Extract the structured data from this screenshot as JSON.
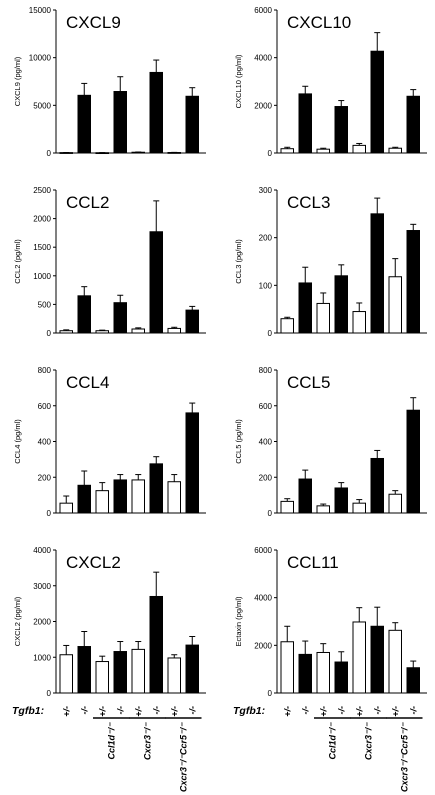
{
  "chart_data": [
    {
      "type": "bar",
      "title": "CXCL9",
      "ylabel": "CXCL9 (pg/ml)",
      "ylim": [
        0,
        15000
      ],
      "yticks": [
        0,
        5000,
        10000,
        15000
      ],
      "values": [
        40,
        6050,
        30,
        6450,
        80,
        8450,
        50,
        5950
      ],
      "errors": [
        10,
        1250,
        10,
        1550,
        25,
        1300,
        15,
        900
      ]
    },
    {
      "type": "bar",
      "title": "CXCL10",
      "ylabel": "CXCL10 (pg/ml)",
      "ylim": [
        0,
        6000
      ],
      "yticks": [
        0,
        2000,
        4000,
        6000
      ],
      "values": [
        180,
        2480,
        160,
        1950,
        320,
        4270,
        200,
        2380
      ],
      "errors": [
        60,
        320,
        40,
        250,
        80,
        780,
        40,
        280
      ]
    },
    {
      "type": "bar",
      "title": "CCL2",
      "ylabel": "CCL2 (pg/ml)",
      "ylim": [
        0,
        2500
      ],
      "yticks": [
        0,
        500,
        1000,
        1500,
        2000,
        2500
      ],
      "values": [
        40,
        650,
        40,
        530,
        70,
        1770,
        80,
        400
      ],
      "errors": [
        15,
        160,
        10,
        130,
        20,
        540,
        20,
        65
      ]
    },
    {
      "type": "bar",
      "title": "CCL3",
      "ylabel": "CCL3 (pg/ml)",
      "ylim": [
        0,
        300
      ],
      "yticks": [
        0,
        100,
        200,
        300
      ],
      "values": [
        30,
        105,
        62,
        120,
        45,
        250,
        118,
        215
      ],
      "errors": [
        3,
        33,
        22,
        23,
        18,
        33,
        38,
        13
      ]
    },
    {
      "type": "bar",
      "title": "CCL4",
      "ylabel": "CCL4 (pg/ml)",
      "ylim": [
        0,
        800
      ],
      "yticks": [
        0,
        200,
        400,
        600,
        800
      ],
      "values": [
        55,
        155,
        125,
        185,
        185,
        275,
        175,
        560
      ],
      "errors": [
        40,
        80,
        45,
        30,
        30,
        40,
        40,
        55
      ]
    },
    {
      "type": "bar",
      "title": "CCL5",
      "ylabel": "CCL5 (pg/ml)",
      "ylim": [
        0,
        800
      ],
      "yticks": [
        0,
        200,
        400,
        600,
        800
      ],
      "values": [
        65,
        190,
        40,
        140,
        55,
        305,
        105,
        575
      ],
      "errors": [
        15,
        50,
        10,
        30,
        20,
        45,
        20,
        70
      ]
    },
    {
      "type": "bar",
      "title": "CXCL2",
      "ylabel": "CXCL2 (pg/ml)",
      "ylim": [
        0,
        4000
      ],
      "yticks": [
        0,
        1000,
        2000,
        3000,
        4000
      ],
      "values": [
        1070,
        1300,
        880,
        1160,
        1220,
        2700,
        980,
        1340
      ],
      "errors": [
        260,
        420,
        150,
        280,
        220,
        680,
        90,
        240
      ]
    },
    {
      "type": "bar",
      "title": "CCL11",
      "ylabel": "Ectaxin (pg/ml)",
      "ylim": [
        0,
        6000
      ],
      "yticks": [
        0,
        2000,
        4000,
        6000
      ],
      "values": [
        2150,
        1620,
        1700,
        1300,
        2980,
        2800,
        2630,
        1060
      ],
      "errors": [
        650,
        560,
        370,
        430,
        600,
        800,
        320,
        280
      ]
    }
  ],
  "bar_fills": [
    "#ffffff",
    "#000000",
    "#ffffff",
    "#000000",
    "#ffffff",
    "#000000",
    "#ffffff",
    "#000000"
  ],
  "genotype_row": {
    "label": "Tgfb1:",
    "tgfb1_labels": [
      "+/-",
      "-/-",
      "+/-",
      "-/-",
      "+/-",
      "-/-",
      "+/-",
      "-/-"
    ],
    "groups": [
      "Ccl1d⁻/⁻",
      "Cxcr3⁻/⁻",
      "Cxcr3⁻/⁻Ccr5⁻/⁻"
    ]
  }
}
